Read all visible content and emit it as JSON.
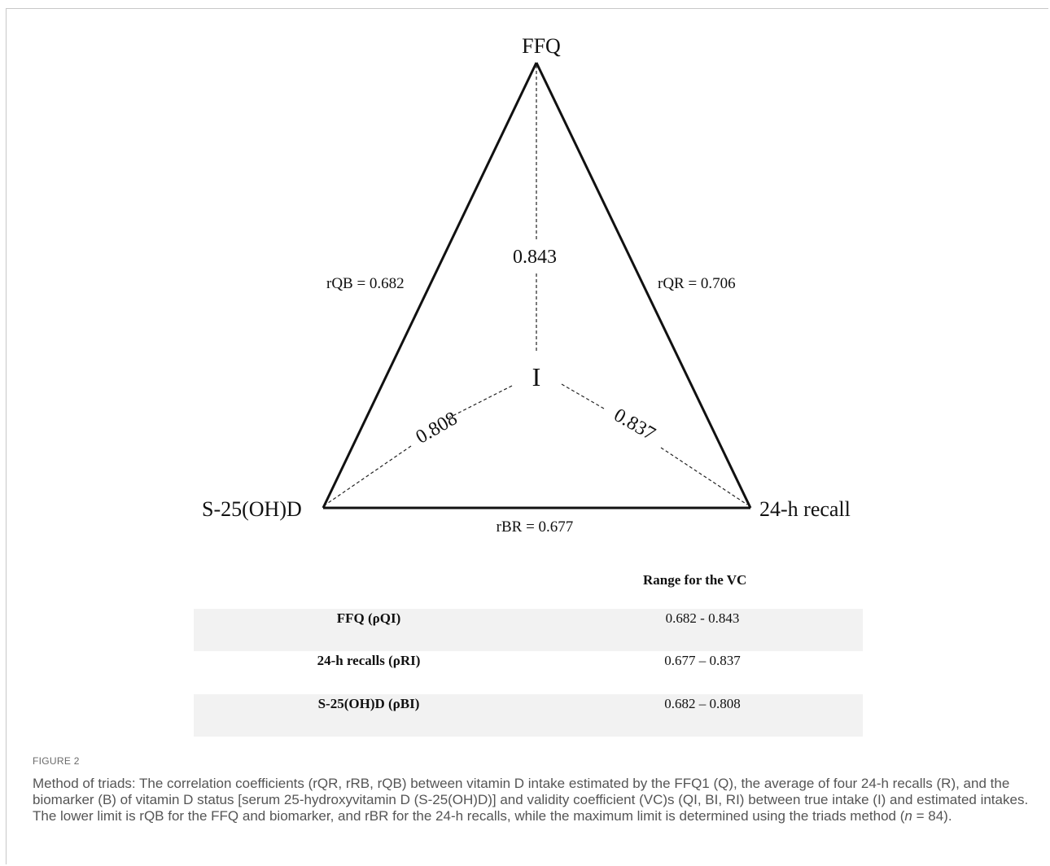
{
  "diagram": {
    "nodes": {
      "top": "FFQ",
      "left": "S-25(OH)D",
      "right": "24-h recall",
      "center": "I"
    },
    "edges": {
      "left_side": "rQB = 0.682",
      "right_side": "rQR = 0.706",
      "bottom_side": "rBR = 0.677"
    },
    "validity_coefficients": {
      "to_ffq": "0.843",
      "to_biomarker": "0.808",
      "to_recall": "0.837"
    }
  },
  "table": {
    "header": "Range for the VC",
    "rows": [
      {
        "label": "FFQ (ρQI)",
        "range": "0.682 - 0.843"
      },
      {
        "label": "24-h recalls (ρRI)",
        "range": "0.677 – 0.837"
      },
      {
        "label": "S-25(OH)D (ρBI)",
        "range": "0.682 – 0.808"
      }
    ]
  },
  "figure_label": "FIGURE 2",
  "caption": {
    "part1": "Method of triads: The correlation coefficients (rQR, rRB, rQB) between vitamin D intake estimated by the FFQ1 (Q), the average of four 24-h recalls (R), and the biomarker (B) of vitamin D status [serum 25-hydroxyvitamin D (S-25(OH)D)] and validity coefficient (VC)s (QI, BI, RI) between true intake (I) and estimated intakes. The lower limit is rQB for the FFQ and biomarker, and rBR for the 24-h recalls, while the maximum limit is determined using the triads method (",
    "n_symbol": "n",
    "part2": " = 84)."
  }
}
